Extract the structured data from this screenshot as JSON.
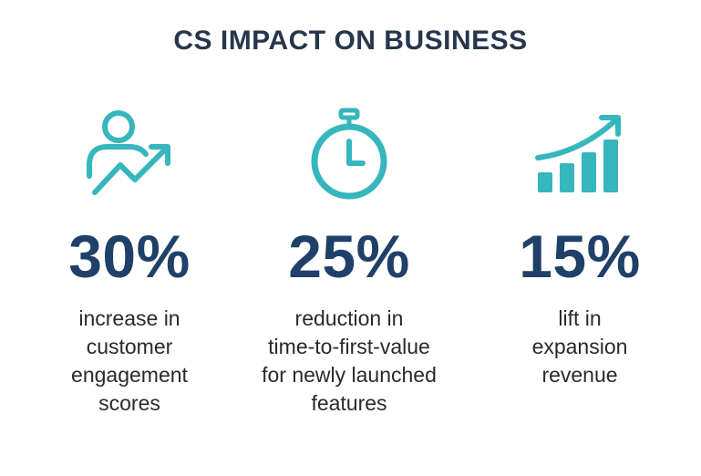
{
  "title": "CS IMPACT ON BUSINESS",
  "colors": {
    "teal": "#36b6bd",
    "navy": "#1f4068",
    "text": "#2a2a2a",
    "title": "#26364d"
  },
  "stats": [
    {
      "icon": "user-growth-icon",
      "value": "30%",
      "lines": [
        "increase in",
        "customer",
        "engagement",
        "scores"
      ]
    },
    {
      "icon": "stopwatch-icon",
      "value": "25%",
      "lines": [
        "reduction in",
        "time-to-first-value",
        "for newly launched",
        "features"
      ]
    },
    {
      "icon": "bar-growth-icon",
      "value": "15%",
      "lines": [
        "lift in",
        "expansion",
        "revenue"
      ]
    }
  ]
}
